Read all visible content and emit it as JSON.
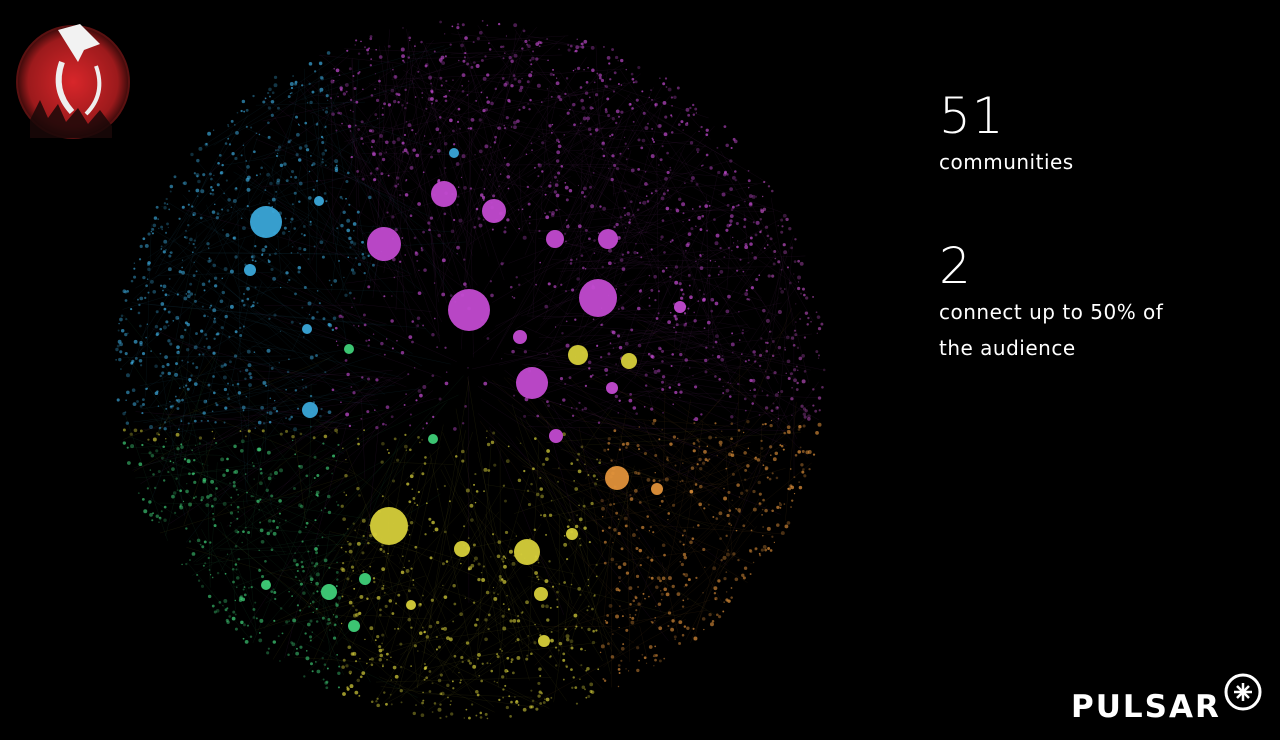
{
  "stats": [
    {
      "value": 51,
      "label": "communities"
    },
    {
      "value": 2,
      "label": "connect up to 50% of the audience"
    }
  ],
  "brand": "PULSAR"
}
